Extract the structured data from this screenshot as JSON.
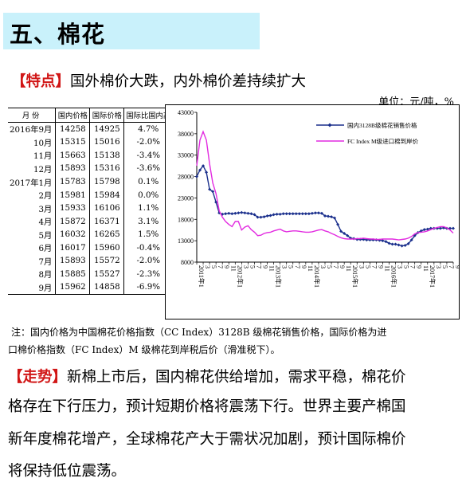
{
  "section_title": "五、棉花",
  "feature": {
    "tag": "【特点】",
    "text": "国外棉价大跌，内外棉价差持续扩大"
  },
  "unit_label": "单位：元/吨，%",
  "table": {
    "headers": [
      "月 份",
      "国内价格",
      "国际价格",
      "国际比国内高"
    ],
    "rows": [
      [
        "2016年9月",
        "14258",
        "14925",
        "4.7%"
      ],
      [
        "10月",
        "15315",
        "15016",
        "-2.0%"
      ],
      [
        "11月",
        "15663",
        "15138",
        "-3.4%"
      ],
      [
        "12月",
        "15893",
        "15316",
        "-3.6%"
      ],
      [
        "2017年1月",
        "15783",
        "15798",
        "0.1%"
      ],
      [
        "2月",
        "15981",
        "15984",
        "0.0%"
      ],
      [
        "3月",
        "15933",
        "16106",
        "1.1%"
      ],
      [
        "4月",
        "15872",
        "16371",
        "3.1%"
      ],
      [
        "5月",
        "16032",
        "16265",
        "1.5%"
      ],
      [
        "6月",
        "16017",
        "15960",
        "-0.4%"
      ],
      [
        "7月",
        "15893",
        "15572",
        "-2.0%"
      ],
      [
        "8月",
        "15885",
        "15527",
        "-2.3%"
      ],
      [
        "9月",
        "15962",
        "14858",
        "-6.9%"
      ]
    ]
  },
  "chart_data": {
    "type": "line",
    "ylim": [
      8000,
      43000
    ],
    "yticks": [
      8000,
      13000,
      18000,
      23000,
      28000,
      33000,
      38000,
      43000
    ],
    "x_month_count": 81,
    "x_labels": [
      {
        "i": 0,
        "text": "2011年1"
      },
      {
        "i": 2,
        "text": "3"
      },
      {
        "i": 4,
        "text": "5"
      },
      {
        "i": 6,
        "text": "7"
      },
      {
        "i": 8,
        "text": "9"
      },
      {
        "i": 10,
        "text": "11"
      },
      {
        "i": 12,
        "text": "2012年1"
      },
      {
        "i": 14,
        "text": "3"
      },
      {
        "i": 16,
        "text": "5"
      },
      {
        "i": 18,
        "text": "7"
      },
      {
        "i": 20,
        "text": "9"
      },
      {
        "i": 22,
        "text": "11"
      },
      {
        "i": 24,
        "text": "2013年1"
      },
      {
        "i": 26,
        "text": "3"
      },
      {
        "i": 28,
        "text": "5"
      },
      {
        "i": 30,
        "text": "7"
      },
      {
        "i": 32,
        "text": "9"
      },
      {
        "i": 34,
        "text": "11"
      },
      {
        "i": 36,
        "text": "2014年1"
      },
      {
        "i": 38,
        "text": "3"
      },
      {
        "i": 40,
        "text": "5"
      },
      {
        "i": 42,
        "text": "7"
      },
      {
        "i": 44,
        "text": "9"
      },
      {
        "i": 46,
        "text": "11"
      },
      {
        "i": 48,
        "text": "2015年1"
      },
      {
        "i": 50,
        "text": "3"
      },
      {
        "i": 52,
        "text": "5"
      },
      {
        "i": 54,
        "text": "7"
      },
      {
        "i": 56,
        "text": "9"
      },
      {
        "i": 58,
        "text": "11"
      },
      {
        "i": 60,
        "text": "2016年1"
      },
      {
        "i": 62,
        "text": "3"
      },
      {
        "i": 64,
        "text": "5"
      },
      {
        "i": 66,
        "text": "7"
      },
      {
        "i": 68,
        "text": "9"
      },
      {
        "i": 70,
        "text": "11"
      },
      {
        "i": 72,
        "text": "2017年1"
      },
      {
        "i": 74,
        "text": "3"
      },
      {
        "i": 76,
        "text": "5"
      },
      {
        "i": 78,
        "text": "7"
      },
      {
        "i": 80,
        "text": "9"
      }
    ],
    "series": [
      {
        "name": "国内3128B级棉花销售价格",
        "color": "#1a2f8c",
        "marker": "diamond",
        "values": [
          28000,
          29500,
          30500,
          29000,
          25000,
          24500,
          22000,
          19500,
          19200,
          19300,
          19400,
          19300,
          19400,
          19500,
          19600,
          19500,
          19400,
          19300,
          19100,
          18500,
          18500,
          18600,
          18800,
          18900,
          19100,
          19200,
          19200,
          19300,
          19300,
          19300,
          19300,
          19300,
          19300,
          19300,
          19300,
          19300,
          19400,
          19500,
          19500,
          19400,
          18800,
          18700,
          18600,
          18300,
          16800,
          15200,
          14700,
          14200,
          13600,
          13500,
          13300,
          13300,
          13300,
          13200,
          13200,
          13200,
          13200,
          13100,
          13000,
          12800,
          12400,
          12200,
          12200,
          12000,
          11800,
          11900,
          12300,
          13200,
          14200,
          14900,
          15300,
          15600,
          15700,
          15900,
          15900,
          15900,
          15900,
          16000,
          15900,
          15900,
          15900
        ]
      },
      {
        "name": "FC Index M级进口棉到岸价",
        "color": "#e22be0",
        "marker": "none",
        "values": [
          30500,
          36500,
          38500,
          36500,
          31000,
          26500,
          24000,
          20000,
          18500,
          17500,
          16800,
          16300,
          17500,
          17500,
          15500,
          16200,
          16500,
          15600,
          15000,
          14200,
          14300,
          14700,
          14900,
          15000,
          15300,
          15500,
          15700,
          15300,
          15100,
          15200,
          15300,
          15300,
          15200,
          15100,
          15000,
          15000,
          15100,
          15300,
          15500,
          15600,
          15300,
          15100,
          14700,
          14400,
          14000,
          13700,
          13500,
          13400,
          13400,
          13400,
          13500,
          13500,
          13600,
          13500,
          13400,
          13400,
          13300,
          13300,
          13400,
          13400,
          13400,
          13400,
          13300,
          13200,
          13300,
          13400,
          13600,
          14000,
          14600,
          14900,
          15000,
          15100,
          15300,
          15600,
          15900,
          16100,
          16300,
          16300,
          16000,
          15500,
          14800
        ]
      }
    ]
  },
  "note_lines": [
    "注：国内价格为中国棉花价格指数（CC Index）3128B 级棉花销售价格，国际价格为进",
    "口棉价格指数（FC Index）M 级棉花到岸税后价（滑准税下）。"
  ],
  "trend": {
    "tag": "【走势】",
    "first_line": "新棉上市后，国内棉花供给增加，需求平稳，棉花价",
    "lines": [
      "格存在下行压力，预计短期价格将震荡下行。世界主要产棉国",
      "新年度棉花增产，全球棉花产大于需状况加剧，预计国际棉价",
      "将保持低位震荡。"
    ]
  }
}
